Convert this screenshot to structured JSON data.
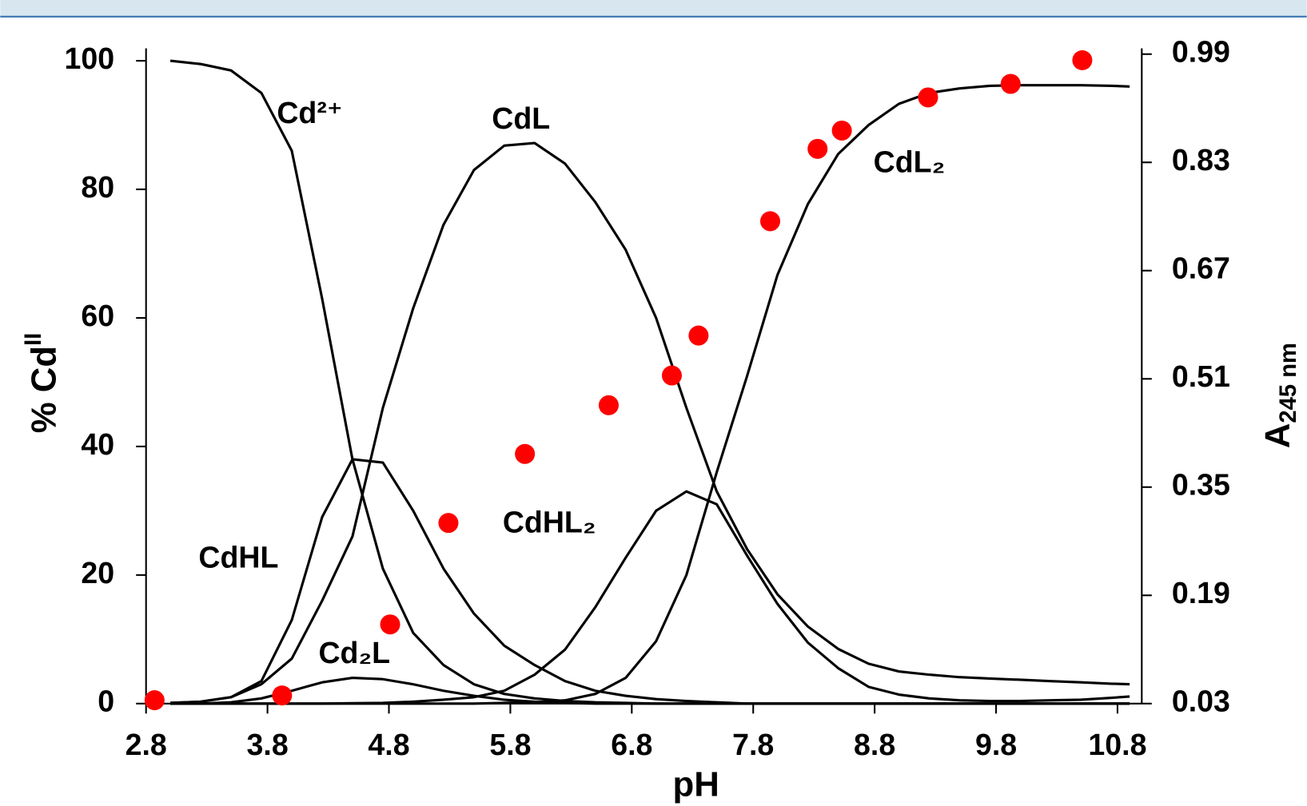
{
  "chart_data": {
    "type": "line",
    "xlabel": "pH",
    "ylabel": {
      "text": "% Cd",
      "sup": "II"
    },
    "y2label": {
      "text": "A",
      "sub": "245 nm"
    },
    "x": [
      3.0,
      3.25,
      3.5,
      3.75,
      4.0,
      4.25,
      4.5,
      4.75,
      5.0,
      5.25,
      5.5,
      5.75,
      6.0,
      6.25,
      6.5,
      6.75,
      7.0,
      7.25,
      7.5,
      7.75,
      8.0,
      8.25,
      8.5,
      8.75,
      9.0,
      9.25,
      9.5,
      9.75,
      10.0,
      10.25,
      10.5,
      10.75,
      10.9
    ],
    "series": [
      {
        "name": "Cd²⁺",
        "color": "#000000",
        "values": [
          100,
          99.5,
          98.5,
          95,
          86,
          63,
          38,
          21,
          11,
          6,
          3,
          1.5,
          0.8,
          0.4,
          0.2,
          0.1,
          0,
          0,
          0,
          0,
          0,
          0,
          0,
          0,
          0,
          0,
          0,
          0,
          0,
          0,
          0,
          0,
          0
        ]
      },
      {
        "name": "CdL",
        "color": "#000000",
        "values": [
          0.1,
          0.3,
          1,
          3,
          7,
          16,
          26,
          46,
          61.5,
          74.5,
          83,
          86.8,
          87.2,
          84,
          78,
          70.6,
          60,
          46,
          33,
          24,
          17,
          12,
          8.5,
          6.2,
          5,
          4.5,
          4.1,
          3.9,
          3.7,
          3.5,
          3.3,
          3.1,
          3.0
        ]
      },
      {
        "name": "CdL₂",
        "color": "#000000",
        "values": [
          0,
          0,
          0,
          0,
          0,
          0,
          0,
          0,
          0,
          0,
          0,
          0.1,
          0.2,
          0.5,
          1.5,
          4,
          9.7,
          20,
          36,
          51,
          66.7,
          77.7,
          85.5,
          90,
          93.3,
          95,
          95.7,
          96.1,
          96.2,
          96.2,
          96.2,
          96.1,
          96
        ]
      },
      {
        "name": "CdHL",
        "color": "#000000",
        "values": [
          0.1,
          0.3,
          1,
          3.5,
          13,
          29,
          38,
          37.5,
          30,
          21,
          14,
          9,
          6,
          3.5,
          2,
          1.2,
          0.7,
          0.4,
          0.2,
          0,
          0,
          0,
          0,
          0,
          0,
          0,
          0,
          0,
          0,
          0,
          0,
          0,
          0
        ]
      },
      {
        "name": "CdHL₂",
        "color": "#000000",
        "values": [
          0,
          0,
          0,
          0,
          0,
          0,
          0.05,
          0.1,
          0.3,
          0.6,
          1,
          2,
          4.5,
          8.4,
          15,
          22.7,
          30,
          33,
          31,
          23,
          15.5,
          9.5,
          5.5,
          2.6,
          1.4,
          0.8,
          0.5,
          0.4,
          0.4,
          0.5,
          0.6,
          0.9,
          1.1
        ]
      },
      {
        "name": "Cd₂L",
        "color": "#000000",
        "values": [
          0,
          0,
          0.2,
          0.8,
          2,
          3.3,
          4,
          3.8,
          3,
          2,
          1.2,
          0.6,
          0.3,
          0.1,
          0,
          0,
          0,
          0,
          0,
          0,
          0,
          0,
          0,
          0,
          0,
          0,
          0,
          0,
          0,
          0,
          0,
          0,
          0
        ]
      },
      {
        "type": "scatter",
        "axis": "y2",
        "color": "#ff0000",
        "x": [
          2.87,
          3.92,
          4.81,
          5.29,
          5.92,
          6.61,
          7.13,
          7.35,
          7.94,
          8.33,
          8.53,
          9.24,
          9.92,
          10.51
        ],
        "values": [
          0.035,
          0.042,
          0.147,
          0.297,
          0.399,
          0.471,
          0.515,
          0.574,
          0.743,
          0.85,
          0.877,
          0.926,
          0.946,
          0.981
        ]
      }
    ],
    "xlim": [
      2.8,
      11.0
    ],
    "xticks": [
      2.8,
      3.8,
      4.8,
      5.8,
      6.8,
      7.8,
      8.8,
      9.8,
      10.8
    ],
    "ylim": [
      0,
      100
    ],
    "yticks": [
      0,
      20,
      40,
      60,
      80,
      100
    ],
    "y2lim": [
      0.03,
      0.99
    ],
    "y2ticks": [
      0.03,
      0.19,
      0.35,
      0.51,
      0.67,
      0.83,
      0.99
    ]
  }
}
